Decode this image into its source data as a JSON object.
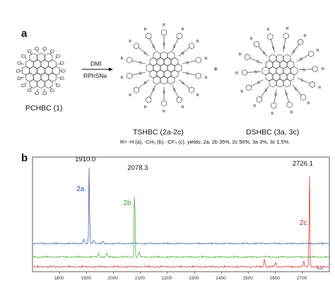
{
  "panel_a": {
    "letter": "a",
    "start_label": "PCHBC (1)",
    "atom_cl": "Cl",
    "atom_s": "S",
    "atom_r": "R",
    "reagent_top": "DMI",
    "reagent_bottom": "RPhSNa",
    "plus_sign": "+",
    "product1_label": "TSHBC (2a-2c)",
    "product2_label": "DSHBC (3a, 3c)",
    "r_definition": "R= -H (a), -CH₃ (b), -CF₃ (c), yields: 2a, 2b 35%, 2c 50%, 3a 3%, 3c 1.5%."
  },
  "panel_b": {
    "letter": "b"
  },
  "chart_data": {
    "type": "line",
    "title": "",
    "xlabel": "m/z",
    "ylabel": "",
    "xlim": [
      1700,
      2800
    ],
    "x_ticks": [
      1800,
      1900,
      2000,
      2100,
      2200,
      2300,
      2400,
      2500,
      2600,
      2700
    ],
    "grid": false,
    "series": [
      {
        "name": "2a",
        "color": "#2a55a8",
        "peak_mz": 1910.0,
        "peak_label": "1910.0",
        "baseline_fraction": 0.1,
        "minor_peaks": [
          [
            1890,
            0.06
          ],
          [
            1927,
            0.05
          ],
          [
            1960,
            0.03
          ]
        ]
      },
      {
        "name": "2b",
        "color": "#3aa12b",
        "peak_mz": 2078.3,
        "peak_label": "2078.3",
        "baseline_fraction": 0.06,
        "minor_peaks": [
          [
            1945,
            0.05
          ],
          [
            1975,
            0.04
          ],
          [
            2095,
            0.06
          ]
        ]
      },
      {
        "name": "2c",
        "color": "#c8281e",
        "peak_mz": 2726.1,
        "peak_label": "2726.1",
        "baseline_fraction": 0.02,
        "minor_peaks": [
          [
            2560,
            0.08
          ],
          [
            2600,
            0.04
          ],
          [
            2705,
            0.05
          ]
        ]
      }
    ]
  }
}
